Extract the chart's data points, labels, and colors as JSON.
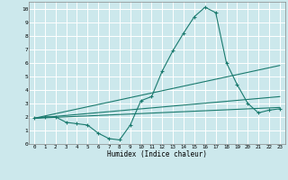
{
  "xlabel": "Humidex (Indice chaleur)",
  "background_color": "#cce8ec",
  "grid_color": "#ffffff",
  "line_color": "#1a7a6e",
  "xlim": [
    -0.5,
    23.5
  ],
  "ylim": [
    0,
    10.5
  ],
  "xticks": [
    0,
    1,
    2,
    3,
    4,
    5,
    6,
    7,
    8,
    9,
    10,
    11,
    12,
    13,
    14,
    15,
    16,
    17,
    18,
    19,
    20,
    21,
    22,
    23
  ],
  "yticks": [
    0,
    1,
    2,
    3,
    4,
    5,
    6,
    7,
    8,
    9,
    10
  ],
  "line1_x": [
    0,
    1,
    2,
    3,
    4,
    5,
    6,
    7,
    8,
    9,
    10,
    11,
    12,
    13,
    14,
    15,
    16,
    17,
    18,
    19,
    20,
    21,
    22,
    23
  ],
  "line1_y": [
    1.9,
    2.0,
    2.0,
    1.6,
    1.5,
    1.4,
    0.8,
    0.4,
    0.3,
    1.4,
    3.2,
    3.5,
    5.4,
    6.9,
    8.2,
    9.4,
    10.1,
    9.7,
    6.0,
    4.4,
    3.0,
    2.3,
    2.5,
    2.6
  ],
  "line2_x": [
    0,
    23
  ],
  "line2_y": [
    1.9,
    2.7
  ],
  "line3_x": [
    0,
    23
  ],
  "line3_y": [
    1.9,
    3.5
  ],
  "line4_x": [
    0,
    23
  ],
  "line4_y": [
    1.9,
    5.8
  ]
}
